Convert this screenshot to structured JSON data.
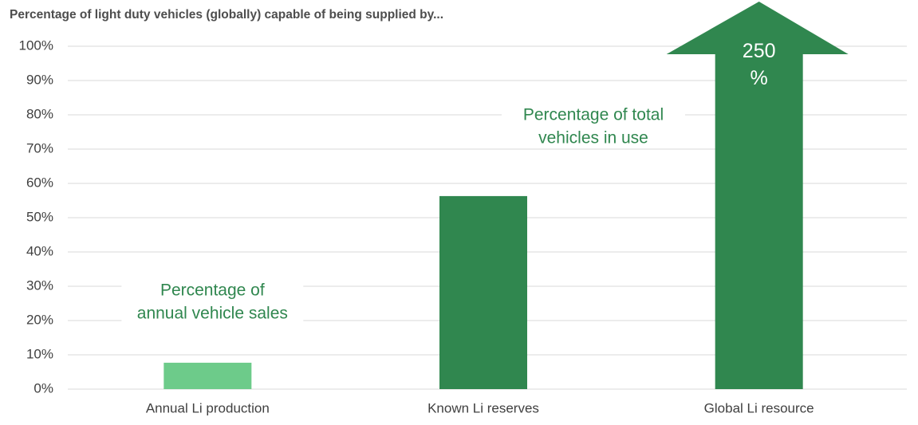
{
  "chart_data": {
    "type": "bar",
    "title": "Percentage of light duty vehicles (globally) capable of being supplied by...",
    "categories": [
      "Annual Li production",
      "Known Li reserves",
      "Global Li resource"
    ],
    "values": [
      7.7,
      56.3,
      250
    ],
    "value_labels": [
      null,
      null,
      "250 %"
    ],
    "colors": [
      "#6dcb8a",
      "#30874f",
      "#30874f"
    ],
    "ylim": [
      0,
      100
    ],
    "yticks": [
      {
        "value": 0,
        "label": "0%"
      },
      {
        "value": 10,
        "label": "10%"
      },
      {
        "value": 20,
        "label": "20%"
      },
      {
        "value": 30,
        "label": "30%"
      },
      {
        "value": 40,
        "label": "40%"
      },
      {
        "value": 50,
        "label": "50%"
      },
      {
        "value": 60,
        "label": "60%"
      },
      {
        "value": 70,
        "label": "70%"
      },
      {
        "value": 80,
        "label": "80%"
      },
      {
        "value": 90,
        "label": "90%"
      },
      {
        "value": 100,
        "label": "100%"
      }
    ],
    "grid": true,
    "annotations": [
      {
        "lines": [
          "Percentage of",
          "annual vehicle sales"
        ],
        "category": 0
      },
      {
        "lines": [
          "Percentage of total",
          "vehicles in use"
        ],
        "category": 1
      }
    ]
  }
}
